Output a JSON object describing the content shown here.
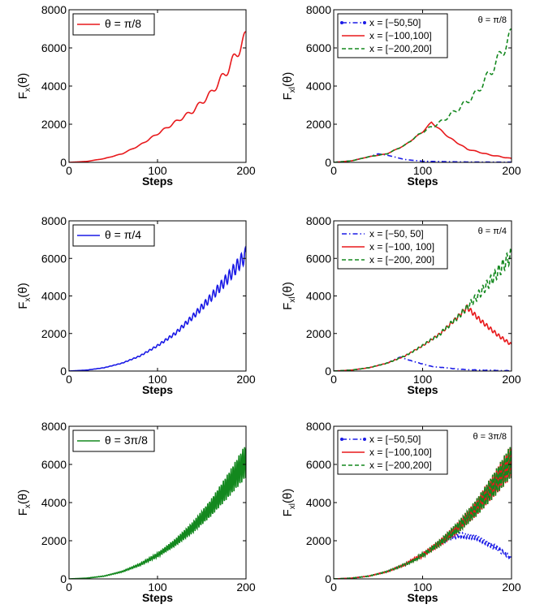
{
  "chart_data": [
    {
      "id": "p1",
      "type": "line",
      "ylabel": "F",
      "ylabel_sub": "x",
      "ylabel_tail": "(θ)",
      "xlabel": "Steps",
      "xlim": [
        0,
        200
      ],
      "ylim": [
        0,
        8000
      ],
      "xticks": [
        "0",
        "100",
        "200"
      ],
      "yticks": [
        "0",
        "2000",
        "4000",
        "6000",
        "8000"
      ],
      "legend_placement": "top-left",
      "series": [
        {
          "name": "θ = π/8",
          "color": "#e8191c",
          "style": "solid",
          "x": [
            0,
            20,
            40,
            60,
            80,
            100,
            120,
            140,
            160,
            180,
            200
          ],
          "y": [
            0,
            50,
            200,
            450,
            900,
            1500,
            2100,
            2700,
            3600,
            4900,
            6600
          ],
          "osc": 400,
          "period": 13
        }
      ]
    },
    {
      "id": "p2",
      "type": "line",
      "ylabel": "F",
      "ylabel_sub": "xl",
      "ylabel_tail": "(θ)",
      "xlabel": "Steps",
      "xlim": [
        0,
        200
      ],
      "ylim": [
        0,
        8000
      ],
      "xticks": [
        "0",
        "100",
        "200"
      ],
      "yticks": [
        "0",
        "2000",
        "4000",
        "6000",
        "8000"
      ],
      "annotation": "θ = π/8",
      "legend_placement": "top-left",
      "series": [
        {
          "name": "x = [−50,50]",
          "color": "#1a1ae6",
          "style": "dashdot-marker",
          "x": [
            0,
            20,
            40,
            50,
            60,
            80,
            100,
            150,
            200
          ],
          "y": [
            0,
            80,
            300,
            450,
            380,
            150,
            60,
            20,
            10
          ],
          "osc": 60,
          "period": 13
        },
        {
          "name": "x = [−100,100]",
          "color": "#e8191c",
          "style": "solid",
          "x": [
            0,
            20,
            40,
            60,
            80,
            100,
            110,
            130,
            150,
            175,
            200
          ],
          "y": [
            0,
            80,
            300,
            450,
            900,
            1600,
            2100,
            1300,
            700,
            400,
            200
          ],
          "osc": 200,
          "period": 13
        },
        {
          "name": "x = [−200,200]",
          "color": "#13881e",
          "style": "dashed",
          "x": [
            0,
            20,
            40,
            60,
            80,
            100,
            120,
            140,
            160,
            180,
            200
          ],
          "y": [
            0,
            80,
            300,
            450,
            900,
            1600,
            2100,
            2800,
            3600,
            5000,
            6700
          ],
          "osc": 450,
          "period": 13
        }
      ]
    },
    {
      "id": "p3",
      "type": "line",
      "ylabel": "F",
      "ylabel_sub": "x",
      "ylabel_tail": "(θ)",
      "xlabel": "Steps",
      "xlim": [
        0,
        200
      ],
      "ylim": [
        0,
        8000
      ],
      "xticks": [
        "0",
        "100",
        "200"
      ],
      "yticks": [
        "0",
        "2000",
        "4000",
        "6000",
        "8000"
      ],
      "legend_placement": "top-left",
      "series": [
        {
          "name": "θ = π/4",
          "color": "#1a1ae6",
          "style": "solid",
          "x": [
            0,
            20,
            40,
            60,
            80,
            100,
            120,
            140,
            160,
            180,
            200
          ],
          "y": [
            0,
            50,
            180,
            420,
            800,
            1350,
            2000,
            2900,
            3900,
            5000,
            6200
          ],
          "osc": 500,
          "period": 4.5
        }
      ]
    },
    {
      "id": "p4",
      "type": "line",
      "ylabel": "F",
      "ylabel_sub": "xl",
      "ylabel_tail": "(θ)",
      "xlabel": "Steps",
      "xlim": [
        0,
        200
      ],
      "ylim": [
        0,
        8000
      ],
      "xticks": [
        "0",
        "100",
        "200"
      ],
      "yticks": [
        "0",
        "2000",
        "4000",
        "6000",
        "8000"
      ],
      "annotation": "θ = π/4",
      "legend_placement": "top-left",
      "series": [
        {
          "name": "x = [−50, 50]",
          "color": "#1a1ae6",
          "style": "dashdot",
          "x": [
            0,
            20,
            40,
            60,
            75,
            90,
            110,
            140,
            170,
            200
          ],
          "y": [
            0,
            50,
            180,
            420,
            750,
            500,
            250,
            100,
            40,
            20
          ],
          "osc": 150,
          "period": 4.5
        },
        {
          "name": "x = [−100, 100]",
          "color": "#e8191c",
          "style": "solid",
          "x": [
            0,
            20,
            40,
            60,
            80,
            100,
            120,
            140,
            150,
            165,
            185,
            200
          ],
          "y": [
            0,
            50,
            180,
            420,
            800,
            1350,
            2000,
            2900,
            3400,
            2700,
            1900,
            1400
          ],
          "osc": 350,
          "period": 4.5
        },
        {
          "name": "x = [−200, 200]",
          "color": "#13881e",
          "style": "dashed",
          "x": [
            0,
            20,
            40,
            60,
            80,
            100,
            120,
            140,
            160,
            180,
            200
          ],
          "y": [
            0,
            50,
            180,
            420,
            800,
            1350,
            2000,
            2900,
            3900,
            5000,
            6200
          ],
          "osc": 500,
          "period": 4.5
        }
      ]
    },
    {
      "id": "p5",
      "type": "line",
      "ylabel": "F",
      "ylabel_sub": "x",
      "ylabel_tail": "(θ)",
      "xlabel": "Steps",
      "xlim": [
        0,
        200
      ],
      "ylim": [
        0,
        8000
      ],
      "xticks": [
        "0",
        "100",
        "200"
      ],
      "yticks": [
        "0",
        "2000",
        "4000",
        "6000",
        "8000"
      ],
      "legend_placement": "top-left",
      "series": [
        {
          "name": "θ = 3π/8",
          "color": "#13881e",
          "style": "solid",
          "x": [
            0,
            20,
            40,
            60,
            80,
            100,
            120,
            140,
            160,
            180,
            200
          ],
          "y": [
            0,
            40,
            150,
            380,
            750,
            1250,
            1900,
            2700,
            3700,
            4900,
            6200
          ],
          "osc": 1100,
          "period": 2.2
        }
      ]
    },
    {
      "id": "p6",
      "type": "line",
      "ylabel": "F",
      "ylabel_sub": "xl",
      "ylabel_tail": "(θ)",
      "xlabel": "Steps",
      "xlim": [
        0,
        200
      ],
      "ylim": [
        0,
        8000
      ],
      "xticks": [
        "0",
        "100",
        "200"
      ],
      "yticks": [
        "0",
        "2000",
        "4000",
        "6000",
        "8000"
      ],
      "annotation": "θ = 3π/8",
      "legend_placement": "top-left",
      "series": [
        {
          "name": "x = [−50,50]",
          "color": "#1a1ae6",
          "style": "dashdot-marker",
          "x": [
            0,
            20,
            40,
            60,
            80,
            100,
            120,
            140,
            160,
            180,
            200
          ],
          "y": [
            0,
            40,
            150,
            380,
            750,
            1250,
            1900,
            2300,
            2200,
            1700,
            1100
          ],
          "osc": 550,
          "period": 3
        },
        {
          "name": "x = [−100,100]",
          "color": "#e8191c",
          "style": "solid",
          "x": [
            0,
            20,
            40,
            60,
            80,
            100,
            120,
            140,
            160,
            180,
            200
          ],
          "y": [
            0,
            40,
            150,
            380,
            750,
            1250,
            1900,
            2700,
            3700,
            4900,
            6200
          ],
          "osc": 1100,
          "period": 2.2
        },
        {
          "name": "x = [−200,200]",
          "color": "#13881e",
          "style": "dashed",
          "x": [
            0,
            20,
            40,
            60,
            80,
            100,
            120,
            140,
            160,
            180,
            200
          ],
          "y": [
            0,
            40,
            150,
            380,
            750,
            1250,
            1900,
            2700,
            3700,
            4900,
            6200
          ],
          "osc": 1100,
          "period": 2.2
        }
      ]
    }
  ]
}
